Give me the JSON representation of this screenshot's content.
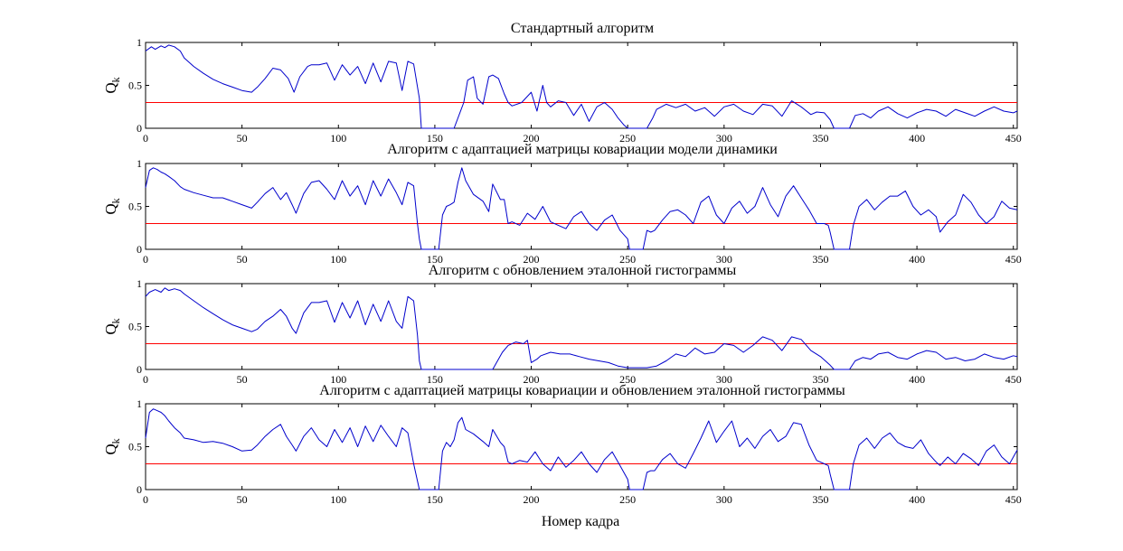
{
  "figure": {
    "xlabel": "Номер кадра",
    "threshold_color": "#ff0000",
    "series_color": "#0000cc",
    "axes_color": "#000000"
  },
  "chart_data": [
    {
      "type": "line",
      "title": "Стандартный алгоритм",
      "ylabel": "Q_k",
      "xlim": [
        0,
        452
      ],
      "ylim": [
        0,
        1
      ],
      "xticks": [
        0,
        50,
        100,
        150,
        200,
        250,
        300,
        350,
        400,
        450
      ],
      "yticks": [
        0,
        0.5,
        1
      ],
      "threshold": 0.3,
      "series": [
        {
          "x": [
            0,
            3,
            5,
            8,
            10,
            12,
            15,
            18,
            20,
            25,
            30,
            35,
            40,
            45,
            50,
            55,
            58,
            62,
            66,
            70,
            74,
            77,
            80,
            84,
            86,
            90,
            94,
            98,
            102,
            106,
            110,
            114,
            118,
            122,
            126,
            130,
            133,
            136,
            139,
            142,
            143,
            144,
            148,
            150,
            160,
            165,
            167,
            170,
            172,
            175,
            178,
            180,
            183,
            186,
            188,
            190,
            195,
            200,
            203,
            206,
            208,
            210,
            214,
            218,
            222,
            226,
            230,
            234,
            238,
            242,
            245,
            248,
            250,
            255,
            258,
            260,
            263,
            265,
            270,
            275,
            280,
            285,
            290,
            295,
            300,
            305,
            310,
            315,
            320,
            325,
            330,
            335,
            340,
            345,
            348,
            352,
            355,
            357,
            360,
            363,
            365,
            368,
            372,
            376,
            380,
            385,
            390,
            395,
            400,
            405,
            410,
            415,
            420,
            425,
            430,
            435,
            440,
            445,
            450,
            452
          ],
          "y": [
            0.9,
            0.95,
            0.92,
            0.96,
            0.94,
            0.97,
            0.95,
            0.9,
            0.82,
            0.72,
            0.64,
            0.57,
            0.52,
            0.48,
            0.44,
            0.42,
            0.48,
            0.58,
            0.7,
            0.68,
            0.58,
            0.42,
            0.6,
            0.72,
            0.74,
            0.74,
            0.76,
            0.56,
            0.74,
            0.62,
            0.72,
            0.52,
            0.76,
            0.54,
            0.78,
            0.76,
            0.44,
            0.78,
            0.75,
            0.35,
            0.0,
            0.0,
            0.0,
            0.0,
            0.0,
            0.3,
            0.56,
            0.6,
            0.35,
            0.28,
            0.6,
            0.62,
            0.58,
            0.4,
            0.3,
            0.26,
            0.3,
            0.42,
            0.2,
            0.5,
            0.3,
            0.25,
            0.32,
            0.3,
            0.15,
            0.28,
            0.08,
            0.25,
            0.3,
            0.22,
            0.12,
            0.04,
            0.0,
            0.0,
            0.0,
            0.0,
            0.12,
            0.22,
            0.28,
            0.24,
            0.28,
            0.2,
            0.24,
            0.14,
            0.25,
            0.28,
            0.2,
            0.16,
            0.28,
            0.26,
            0.14,
            0.32,
            0.25,
            0.16,
            0.19,
            0.18,
            0.1,
            0.0,
            0.0,
            0.0,
            0.0,
            0.15,
            0.17,
            0.12,
            0.2,
            0.25,
            0.17,
            0.12,
            0.18,
            0.22,
            0.2,
            0.14,
            0.22,
            0.18,
            0.14,
            0.2,
            0.25,
            0.2,
            0.18,
            0.2
          ]
        }
      ]
    },
    {
      "type": "line",
      "title": "Алгоритм с адаптацией матрицы ковариации модели динамики",
      "ylabel": "Q_k",
      "xlim": [
        0,
        452
      ],
      "ylim": [
        0,
        1
      ],
      "xticks": [
        0,
        50,
        100,
        150,
        200,
        250,
        300,
        350,
        400,
        450
      ],
      "yticks": [
        0,
        0.5,
        1
      ],
      "threshold": 0.3,
      "series": [
        {
          "x": [
            0,
            2,
            4,
            6,
            8,
            10,
            12,
            15,
            18,
            20,
            25,
            30,
            35,
            40,
            45,
            50,
            55,
            58,
            62,
            66,
            70,
            73,
            76,
            78,
            82,
            86,
            90,
            94,
            98,
            102,
            106,
            110,
            114,
            118,
            122,
            126,
            130,
            133,
            136,
            139,
            141,
            142,
            143,
            148,
            152,
            154,
            156,
            158,
            160,
            162,
            164,
            166,
            170,
            175,
            178,
            180,
            184,
            186,
            188,
            190,
            194,
            198,
            202,
            206,
            210,
            214,
            218,
            222,
            226,
            230,
            234,
            238,
            242,
            246,
            250,
            251,
            253,
            255,
            258,
            260,
            262,
            264,
            268,
            272,
            276,
            280,
            284,
            288,
            292,
            296,
            300,
            304,
            308,
            312,
            316,
            320,
            324,
            328,
            332,
            336,
            340,
            344,
            348,
            352,
            354,
            355,
            357,
            360,
            365,
            367,
            370,
            374,
            378,
            382,
            386,
            390,
            394,
            398,
            402,
            406,
            410,
            412,
            416,
            420,
            424,
            428,
            432,
            436,
            440,
            444,
            448,
            452
          ],
          "y": [
            0.72,
            0.92,
            0.95,
            0.93,
            0.9,
            0.88,
            0.85,
            0.8,
            0.73,
            0.7,
            0.66,
            0.63,
            0.6,
            0.6,
            0.56,
            0.52,
            0.48,
            0.55,
            0.65,
            0.72,
            0.58,
            0.66,
            0.52,
            0.42,
            0.65,
            0.78,
            0.8,
            0.7,
            0.58,
            0.8,
            0.62,
            0.74,
            0.52,
            0.8,
            0.62,
            0.82,
            0.66,
            0.52,
            0.78,
            0.74,
            0.3,
            0.12,
            0.0,
            0.0,
            0.0,
            0.4,
            0.5,
            0.52,
            0.55,
            0.78,
            0.95,
            0.8,
            0.64,
            0.56,
            0.44,
            0.76,
            0.58,
            0.58,
            0.3,
            0.32,
            0.28,
            0.42,
            0.35,
            0.5,
            0.32,
            0.28,
            0.24,
            0.38,
            0.44,
            0.3,
            0.22,
            0.34,
            0.4,
            0.22,
            0.12,
            0.0,
            0.0,
            0.0,
            0.0,
            0.22,
            0.2,
            0.22,
            0.34,
            0.44,
            0.46,
            0.4,
            0.3,
            0.55,
            0.62,
            0.4,
            0.3,
            0.48,
            0.56,
            0.42,
            0.5,
            0.72,
            0.52,
            0.38,
            0.62,
            0.74,
            0.6,
            0.46,
            0.3,
            0.3,
            0.28,
            0.2,
            0.0,
            0.0,
            0.0,
            0.28,
            0.5,
            0.58,
            0.46,
            0.55,
            0.62,
            0.62,
            0.68,
            0.5,
            0.4,
            0.46,
            0.38,
            0.2,
            0.32,
            0.4,
            0.64,
            0.55,
            0.4,
            0.3,
            0.38,
            0.56,
            0.48,
            0.46
          ]
        }
      ]
    },
    {
      "type": "line",
      "title": "Алгоритм с обновлением эталонной гистограммы",
      "ylabel": "Q_k",
      "xlim": [
        0,
        452
      ],
      "ylim": [
        0,
        1
      ],
      "xticks": [
        0,
        50,
        100,
        150,
        200,
        250,
        300,
        350,
        400,
        450
      ],
      "yticks": [
        0,
        0.5,
        1
      ],
      "threshold": 0.3,
      "series": [
        {
          "x": [
            0,
            2,
            5,
            8,
            10,
            12,
            15,
            18,
            20,
            25,
            30,
            35,
            40,
            45,
            50,
            55,
            58,
            62,
            66,
            70,
            73,
            76,
            78,
            82,
            86,
            90,
            94,
            98,
            102,
            106,
            110,
            114,
            118,
            122,
            126,
            130,
            133,
            136,
            139,
            141,
            142,
            143,
            150,
            170,
            180,
            182,
            185,
            188,
            192,
            196,
            198,
            200,
            203,
            205,
            210,
            215,
            220,
            225,
            230,
            235,
            240,
            245,
            250,
            255,
            260,
            265,
            270,
            275,
            280,
            285,
            290,
            295,
            300,
            305,
            310,
            315,
            320,
            325,
            330,
            335,
            340,
            345,
            350,
            355,
            357,
            360,
            365,
            368,
            372,
            376,
            380,
            385,
            390,
            395,
            400,
            405,
            410,
            415,
            420,
            425,
            430,
            435,
            440,
            445,
            450,
            452
          ],
          "y": [
            0.85,
            0.9,
            0.93,
            0.9,
            0.95,
            0.92,
            0.94,
            0.92,
            0.88,
            0.8,
            0.72,
            0.65,
            0.58,
            0.52,
            0.48,
            0.44,
            0.47,
            0.56,
            0.62,
            0.7,
            0.62,
            0.48,
            0.42,
            0.66,
            0.78,
            0.78,
            0.8,
            0.55,
            0.78,
            0.6,
            0.8,
            0.52,
            0.76,
            0.56,
            0.8,
            0.56,
            0.48,
            0.85,
            0.8,
            0.4,
            0.1,
            0.0,
            0.0,
            0.0,
            0.0,
            0.08,
            0.2,
            0.28,
            0.32,
            0.3,
            0.34,
            0.08,
            0.12,
            0.16,
            0.2,
            0.18,
            0.18,
            0.15,
            0.12,
            0.1,
            0.08,
            0.04,
            0.02,
            0.02,
            0.02,
            0.04,
            0.1,
            0.18,
            0.15,
            0.25,
            0.18,
            0.2,
            0.3,
            0.28,
            0.2,
            0.28,
            0.38,
            0.34,
            0.22,
            0.38,
            0.35,
            0.22,
            0.15,
            0.05,
            0.0,
            0.0,
            0.0,
            0.1,
            0.14,
            0.12,
            0.18,
            0.2,
            0.14,
            0.12,
            0.18,
            0.22,
            0.2,
            0.12,
            0.14,
            0.1,
            0.12,
            0.18,
            0.14,
            0.12,
            0.16,
            0.15
          ]
        }
      ]
    },
    {
      "type": "line",
      "title": "Алгоритм с адаптацией матрицы ковариации и обновлением эталонной гистограммы",
      "ylabel": "Q_k",
      "xlim": [
        0,
        452
      ],
      "ylim": [
        0,
        1
      ],
      "xticks": [
        0,
        50,
        100,
        150,
        200,
        250,
        300,
        350,
        400,
        450
      ],
      "yticks": [
        0,
        0.5,
        1
      ],
      "threshold": 0.3,
      "series": [
        {
          "x": [
            0,
            2,
            4,
            6,
            8,
            10,
            12,
            15,
            18,
            20,
            25,
            30,
            35,
            40,
            45,
            50,
            55,
            58,
            62,
            66,
            70,
            73,
            76,
            78,
            82,
            86,
            90,
            94,
            98,
            102,
            106,
            110,
            114,
            118,
            122,
            126,
            130,
            133,
            136,
            139,
            141,
            142,
            143,
            148,
            152,
            154,
            156,
            158,
            160,
            162,
            164,
            166,
            170,
            175,
            178,
            180,
            184,
            186,
            188,
            190,
            194,
            198,
            202,
            206,
            210,
            214,
            218,
            222,
            226,
            230,
            234,
            238,
            242,
            246,
            250,
            251,
            253,
            255,
            258,
            260,
            262,
            264,
            268,
            272,
            276,
            280,
            284,
            288,
            292,
            296,
            300,
            304,
            308,
            312,
            316,
            320,
            324,
            328,
            332,
            336,
            340,
            344,
            348,
            352,
            354,
            355,
            357,
            360,
            365,
            367,
            370,
            374,
            378,
            382,
            386,
            390,
            394,
            398,
            402,
            406,
            410,
            412,
            416,
            420,
            424,
            428,
            432,
            436,
            440,
            444,
            448,
            452
          ],
          "y": [
            0.6,
            0.9,
            0.94,
            0.92,
            0.9,
            0.86,
            0.8,
            0.72,
            0.66,
            0.6,
            0.58,
            0.55,
            0.56,
            0.54,
            0.5,
            0.45,
            0.46,
            0.52,
            0.62,
            0.7,
            0.76,
            0.62,
            0.52,
            0.45,
            0.62,
            0.72,
            0.58,
            0.5,
            0.7,
            0.55,
            0.72,
            0.5,
            0.74,
            0.56,
            0.75,
            0.62,
            0.5,
            0.72,
            0.66,
            0.3,
            0.1,
            0.0,
            0.0,
            0.0,
            0.0,
            0.45,
            0.55,
            0.5,
            0.58,
            0.78,
            0.84,
            0.7,
            0.65,
            0.56,
            0.5,
            0.7,
            0.55,
            0.5,
            0.32,
            0.3,
            0.34,
            0.32,
            0.44,
            0.3,
            0.22,
            0.38,
            0.26,
            0.34,
            0.44,
            0.3,
            0.2,
            0.35,
            0.44,
            0.28,
            0.12,
            0.0,
            0.0,
            0.0,
            0.0,
            0.2,
            0.22,
            0.22,
            0.35,
            0.42,
            0.3,
            0.25,
            0.42,
            0.6,
            0.8,
            0.55,
            0.68,
            0.8,
            0.5,
            0.6,
            0.48,
            0.62,
            0.7,
            0.56,
            0.62,
            0.78,
            0.76,
            0.52,
            0.34,
            0.3,
            0.28,
            0.18,
            0.0,
            0.0,
            0.0,
            0.3,
            0.52,
            0.6,
            0.48,
            0.6,
            0.66,
            0.55,
            0.5,
            0.48,
            0.58,
            0.42,
            0.32,
            0.28,
            0.38,
            0.3,
            0.42,
            0.36,
            0.28,
            0.45,
            0.52,
            0.38,
            0.3,
            0.46
          ]
        }
      ]
    }
  ]
}
